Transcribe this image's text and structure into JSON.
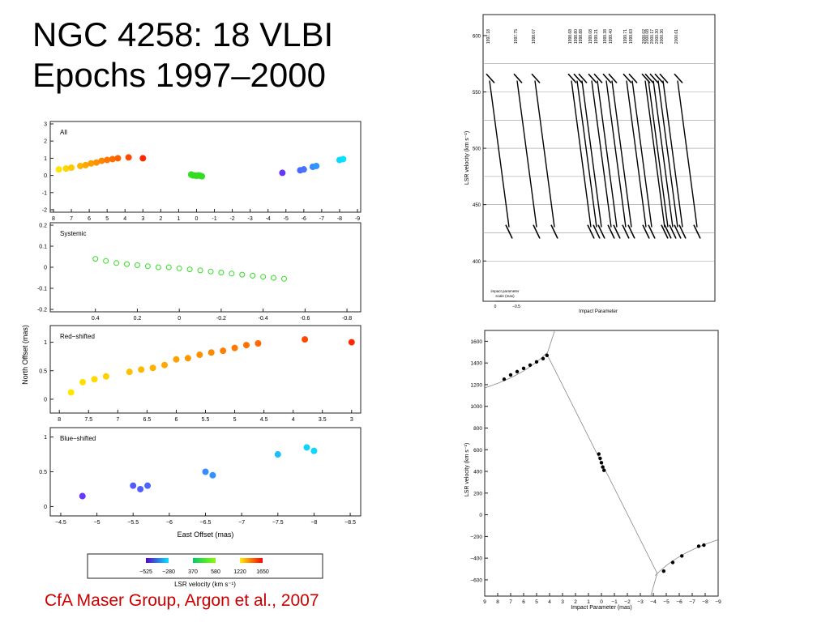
{
  "slide": {
    "title_line1": "NGC 4258: 18 VLBI",
    "title_line2": "Epochs 1997–2000",
    "credit": "CfA Maser Group, Argon et al., 2007"
  },
  "colors": {
    "credit": "#cc0000"
  },
  "chart_data": [
    {
      "type": "scatter",
      "label": "All",
      "xlabel": "",
      "ylabel": "",
      "xlim": [
        8,
        -9
      ],
      "ylim": [
        -2,
        3
      ],
      "xticks": [
        "8",
        "7",
        "6",
        "5",
        "4",
        "3",
        "2",
        "1",
        "0",
        "-1",
        "-2",
        "-3",
        "-4",
        "-5",
        "-6",
        "-7",
        "-8",
        "-9"
      ],
      "yticks": [
        "-2",
        "-1",
        "0",
        "1",
        "2",
        "3"
      ],
      "series": [
        {
          "name": "Red-shifted",
          "points": [
            [
              7.7,
              0.35
            ],
            [
              7.3,
              0.4
            ],
            [
              7.0,
              0.45
            ],
            [
              6.5,
              0.55
            ],
            [
              6.2,
              0.6
            ],
            [
              5.9,
              0.7
            ],
            [
              5.6,
              0.75
            ],
            [
              5.3,
              0.85
            ],
            [
              5.0,
              0.9
            ],
            [
              4.7,
              0.95
            ],
            [
              4.4,
              1.0
            ],
            [
              3.8,
              1.05
            ],
            [
              3.0,
              1.0
            ]
          ]
        },
        {
          "name": "Systemic",
          "points": [
            [
              0.3,
              0.05
            ],
            [
              0.2,
              0.0
            ],
            [
              0.1,
              0.0
            ],
            [
              0.0,
              -0.02
            ],
            [
              -0.1,
              0.0
            ],
            [
              -0.2,
              -0.02
            ],
            [
              -0.3,
              -0.05
            ]
          ]
        },
        {
          "name": "Blue-shifted",
          "points": [
            [
              -4.8,
              0.15
            ],
            [
              -5.8,
              0.3
            ],
            [
              -6.0,
              0.35
            ],
            [
              -6.5,
              0.5
            ],
            [
              -6.7,
              0.55
            ],
            [
              -8.0,
              0.9
            ],
            [
              -8.2,
              0.95
            ]
          ]
        }
      ]
    },
    {
      "type": "scatter",
      "label": "Systemic",
      "xlabel": "",
      "ylabel": "",
      "xlim": [
        0.6,
        -0.85
      ],
      "ylim": [
        -0.2,
        0.2
      ],
      "xticks": [
        "0.4",
        "0.2",
        "0",
        "-0.2",
        "-0.4",
        "-0.6",
        "-0.8"
      ],
      "yticks": [
        "-0.2",
        "-0.1",
        "0",
        "0.1",
        "0.2"
      ],
      "series": [
        {
          "name": "Systemic",
          "points": [
            [
              0.4,
              0.04
            ],
            [
              0.35,
              0.03
            ],
            [
              0.3,
              0.02
            ],
            [
              0.25,
              0.015
            ],
            [
              0.2,
              0.01
            ],
            [
              0.15,
              0.005
            ],
            [
              0.1,
              0.0
            ],
            [
              0.05,
              0.0
            ],
            [
              0.0,
              -0.005
            ],
            [
              -0.05,
              -0.01
            ],
            [
              -0.1,
              -0.015
            ],
            [
              -0.15,
              -0.02
            ],
            [
              -0.2,
              -0.025
            ],
            [
              -0.25,
              -0.03
            ],
            [
              -0.3,
              -0.035
            ],
            [
              -0.35,
              -0.04
            ],
            [
              -0.4,
              -0.045
            ],
            [
              -0.45,
              -0.05
            ],
            [
              -0.5,
              -0.055
            ]
          ]
        }
      ]
    },
    {
      "type": "scatter",
      "label": "Red−shifted",
      "xlabel": "",
      "ylabel": "North Offset (mas)",
      "xlim": [
        8.1,
        2.9
      ],
      "ylim": [
        -0.2,
        1.25
      ],
      "xticks": [
        "8",
        "7.5",
        "7",
        "6.5",
        "6",
        "5.5",
        "5",
        "4.5",
        "4",
        "3.5",
        "3"
      ],
      "yticks": [
        "0",
        "0.5",
        "1"
      ],
      "series": [
        {
          "name": "Red-shifted",
          "points": [
            [
              7.8,
              0.12
            ],
            [
              7.6,
              0.3
            ],
            [
              7.4,
              0.35
            ],
            [
              7.2,
              0.4
            ],
            [
              6.8,
              0.48
            ],
            [
              6.6,
              0.52
            ],
            [
              6.4,
              0.55
            ],
            [
              6.2,
              0.6
            ],
            [
              6.0,
              0.7
            ],
            [
              5.8,
              0.72
            ],
            [
              5.6,
              0.78
            ],
            [
              5.4,
              0.82
            ],
            [
              5.2,
              0.85
            ],
            [
              5.0,
              0.9
            ],
            [
              4.8,
              0.95
            ],
            [
              4.6,
              0.98
            ],
            [
              3.8,
              1.05
            ],
            [
              3.0,
              1.0
            ]
          ]
        }
      ]
    },
    {
      "type": "scatter",
      "label": "Blue−shifted",
      "xlabel": "East Offset (mas)",
      "ylabel": "",
      "xlim": [
        -4.4,
        -8.6
      ],
      "ylim": [
        -0.1,
        1.1
      ],
      "xticks": [
        "−4.5",
        "−5",
        "−5.5",
        "−6",
        "−6.5",
        "−7",
        "−7.5",
        "−8",
        "−8.5"
      ],
      "yticks": [
        "0",
        "0.5",
        "1"
      ],
      "series": [
        {
          "name": "Blue-shifted",
          "points": [
            [
              -4.8,
              0.15
            ],
            [
              -5.5,
              0.3
            ],
            [
              -5.6,
              0.25
            ],
            [
              -5.7,
              0.3
            ],
            [
              -6.5,
              0.5
            ],
            [
              -6.6,
              0.45
            ],
            [
              -7.5,
              0.75
            ],
            [
              -7.9,
              0.85
            ],
            [
              -8.0,
              0.8
            ]
          ]
        }
      ]
    },
    {
      "type": "colorbar",
      "label": "LSR velocity (km s⁻¹)",
      "segments": [
        {
          "from": "−525",
          "to": "−280",
          "start_color": "#5a00d0",
          "end_color": "#00e5ff"
        },
        {
          "from": "370",
          "to": "580",
          "start_color": "#00cc66",
          "end_color": "#88ff00"
        },
        {
          "from": "1220",
          "to": "1650",
          "start_color": "#ffee00",
          "end_color": "#ff0000"
        }
      ]
    },
    {
      "type": "line",
      "label": "",
      "xlabel": "Impact Parameter",
      "ylabel": "LSR velocity (km s⁻¹)",
      "ylim": [
        370,
        610
      ],
      "yticks": [
        "400",
        "450",
        "500",
        "550",
        "600"
      ],
      "epochs": [
        "1997.18",
        "1997.75",
        "1998.07",
        "1998.68",
        "1998.80",
        "1998.88",
        "1999.08",
        "1999.21",
        "1999.38",
        "1999.40",
        "1999.71",
        "1999.83",
        "2000.02",
        "2000.08",
        "2000.17",
        "2000.30",
        "2000.36",
        "2000.61"
      ],
      "scale_bar_label": "impact parameter scale (mas)",
      "scale_ticks": [
        "0",
        "−0.5"
      ]
    },
    {
      "type": "scatter",
      "label": "",
      "xlabel": "Impact Parameter (mas)",
      "ylabel": "LSR velocity (km s⁻¹)",
      "xlim": [
        9,
        -9
      ],
      "ylim": [
        -750,
        1700
      ],
      "xticks": [
        "9",
        "8",
        "7",
        "6",
        "5",
        "4",
        "3",
        "2",
        "1",
        "0",
        "−1",
        "−2",
        "−3",
        "−4",
        "−5",
        "−6",
        "−7",
        "−8",
        "−9"
      ],
      "yticks": [
        "−600",
        "−400",
        "−200",
        "0",
        "200",
        "400",
        "600",
        "800",
        "1000",
        "1200",
        "1400",
        "1600"
      ],
      "series": [
        {
          "name": "Red-shifted",
          "points": [
            [
              7.5,
              1250
            ],
            [
              7.0,
              1290
            ],
            [
              6.5,
              1320
            ],
            [
              6.0,
              1350
            ],
            [
              5.5,
              1380
            ],
            [
              5.0,
              1410
            ],
            [
              4.5,
              1440
            ],
            [
              4.2,
              1470
            ]
          ]
        },
        {
          "name": "Systemic",
          "points": [
            [
              0.2,
              560
            ],
            [
              0.1,
              520
            ],
            [
              0.0,
              480
            ],
            [
              -0.1,
              440
            ],
            [
              -0.2,
              410
            ]
          ]
        },
        {
          "name": "Blue-shifted",
          "points": [
            [
              -4.8,
              -520
            ],
            [
              -5.5,
              -440
            ],
            [
              -6.2,
              -380
            ],
            [
              -7.5,
              -290
            ],
            [
              -7.9,
              -280
            ]
          ]
        }
      ]
    }
  ]
}
